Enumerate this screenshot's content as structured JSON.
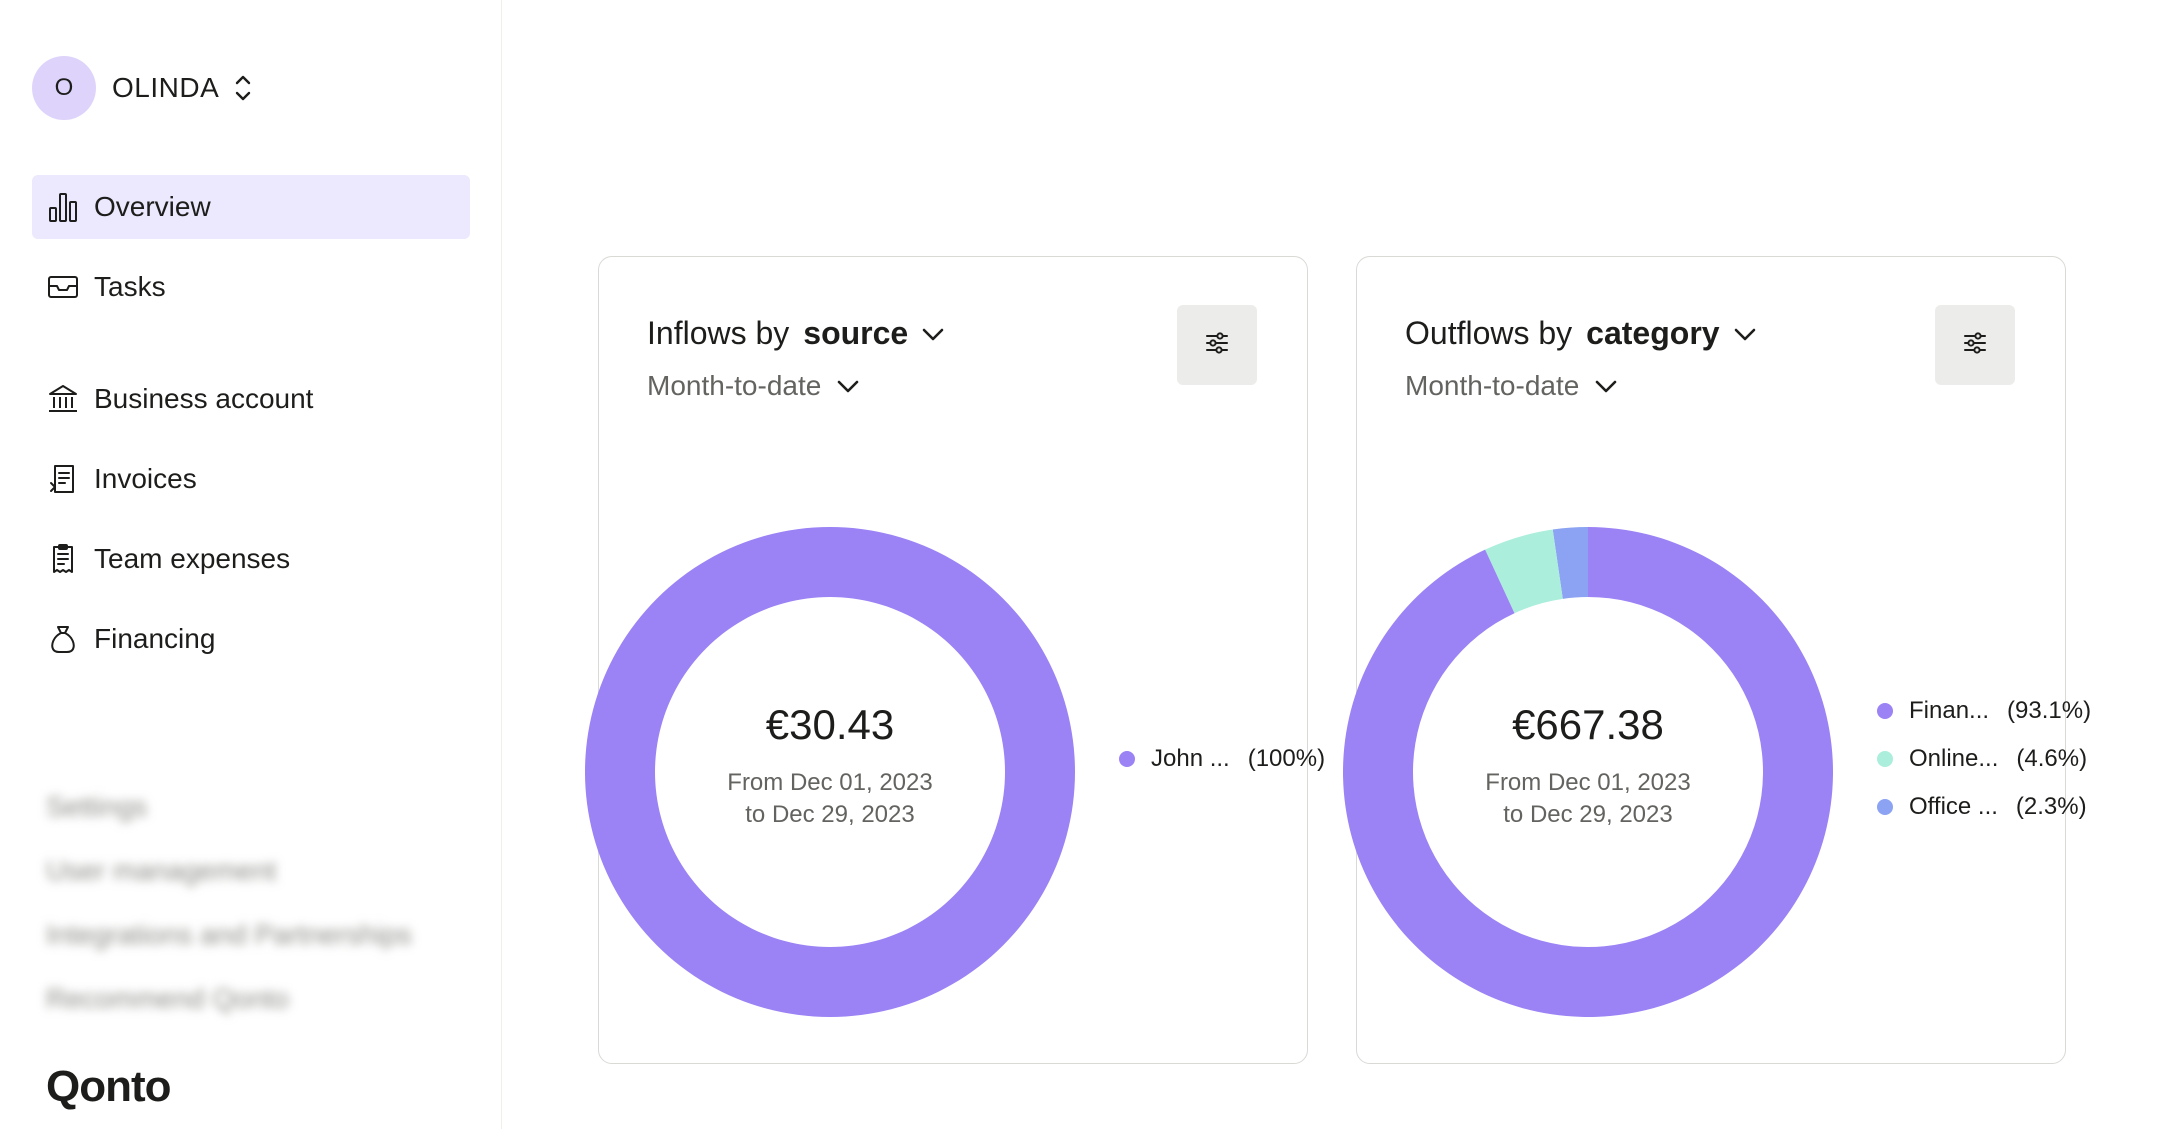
{
  "org": {
    "initial": "O",
    "name": "OLINDA"
  },
  "nav": {
    "primary": [
      {
        "label": "Overview",
        "icon": "bar-chart-icon",
        "active": true
      },
      {
        "label": "Tasks",
        "icon": "inbox-tray-icon",
        "active": false
      }
    ],
    "secondary": [
      {
        "label": "Business account",
        "icon": "bank-icon"
      },
      {
        "label": "Invoices",
        "icon": "invoice-icon"
      },
      {
        "label": "Team expenses",
        "icon": "receipt-icon"
      },
      {
        "label": "Financing",
        "icon": "money-bag-icon"
      }
    ],
    "blurred": [
      "Settings",
      "User management",
      "Integrations and Partnerships",
      "Recommend Qonto"
    ]
  },
  "logo": "Qonto",
  "inflows": {
    "title_prefix": "Inflows by",
    "dimension": "source",
    "period": "Month-to-date",
    "amount": "€30.43",
    "range_line1": "From Dec 01, 2023",
    "range_line2": "to Dec 29, 2023",
    "legend": [
      {
        "label": "John ...",
        "pct": "(100%)",
        "color": "#9b82f5"
      }
    ]
  },
  "outflows": {
    "title_prefix": "Outflows by",
    "dimension": "category",
    "period": "Month-to-date",
    "amount": "€667.38",
    "range_line1": "From Dec 01, 2023",
    "range_line2": "to Dec 29, 2023",
    "legend": [
      {
        "label": "Finan...",
        "pct": "(93.1%)",
        "color": "#9b82f5"
      },
      {
        "label": "Online...",
        "pct": "(4.6%)",
        "color": "#abeedc"
      },
      {
        "label": "Office ...",
        "pct": "(2.3%)",
        "color": "#8ba3f2"
      }
    ]
  },
  "chart_data": [
    {
      "type": "pie",
      "categories": [
        "John ..."
      ],
      "values": [
        100
      ],
      "colors": [
        "#9b82f5"
      ]
    },
    {
      "type": "pie",
      "categories": [
        "Finan...",
        "Online...",
        "Office ..."
      ],
      "values": [
        93.1,
        4.6,
        2.3
      ],
      "colors": [
        "#9b82f5",
        "#abeedc",
        "#8ba3f2"
      ]
    }
  ]
}
